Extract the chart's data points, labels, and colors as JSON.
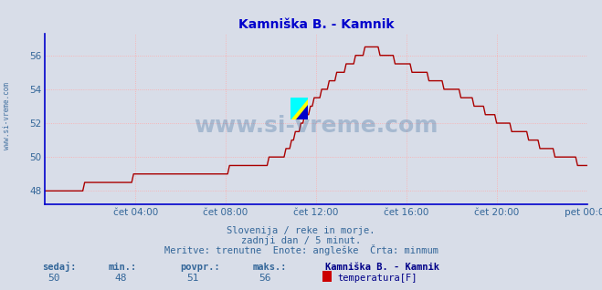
{
  "title": "Kamniška B. - Kamnik",
  "title_color": "#0000cc",
  "bg_color": "#d8dde8",
  "plot_bg_color": "#d8dde8",
  "grid_color": "#ffaaaa",
  "line_color": "#aa0000",
  "xlabel_color": "#336699",
  "ylabel_color": "#336699",
  "watermark_color": "#336699",
  "watermark_text": "www.si-vreme.com",
  "side_text": "www.si-vreme.com",
  "subtitle1": "Slovenija / reke in morje.",
  "subtitle2": "zadnji dan / 5 minut.",
  "subtitle3": "Meritve: trenutne  Enote: angleške  Črta: minmum",
  "footer_labels": [
    "sedaj:",
    "min.:",
    "povpr.:",
    "maks.:"
  ],
  "footer_values": [
    "50",
    "48",
    "51",
    "56"
  ],
  "legend_title": "Kamniška B. - Kamnik",
  "legend_label": "temperatura[F]",
  "legend_color": "#cc0000",
  "ylim": [
    47.2,
    57.3
  ],
  "yticks": [
    48,
    50,
    52,
    54,
    56
  ],
  "xtick_labels": [
    "čet 04:00",
    "čet 08:00",
    "čet 12:00",
    "čet 16:00",
    "čet 20:00",
    "pet 00:00"
  ],
  "spine_color": "#0000cc",
  "arrow_color": "#cc0000"
}
